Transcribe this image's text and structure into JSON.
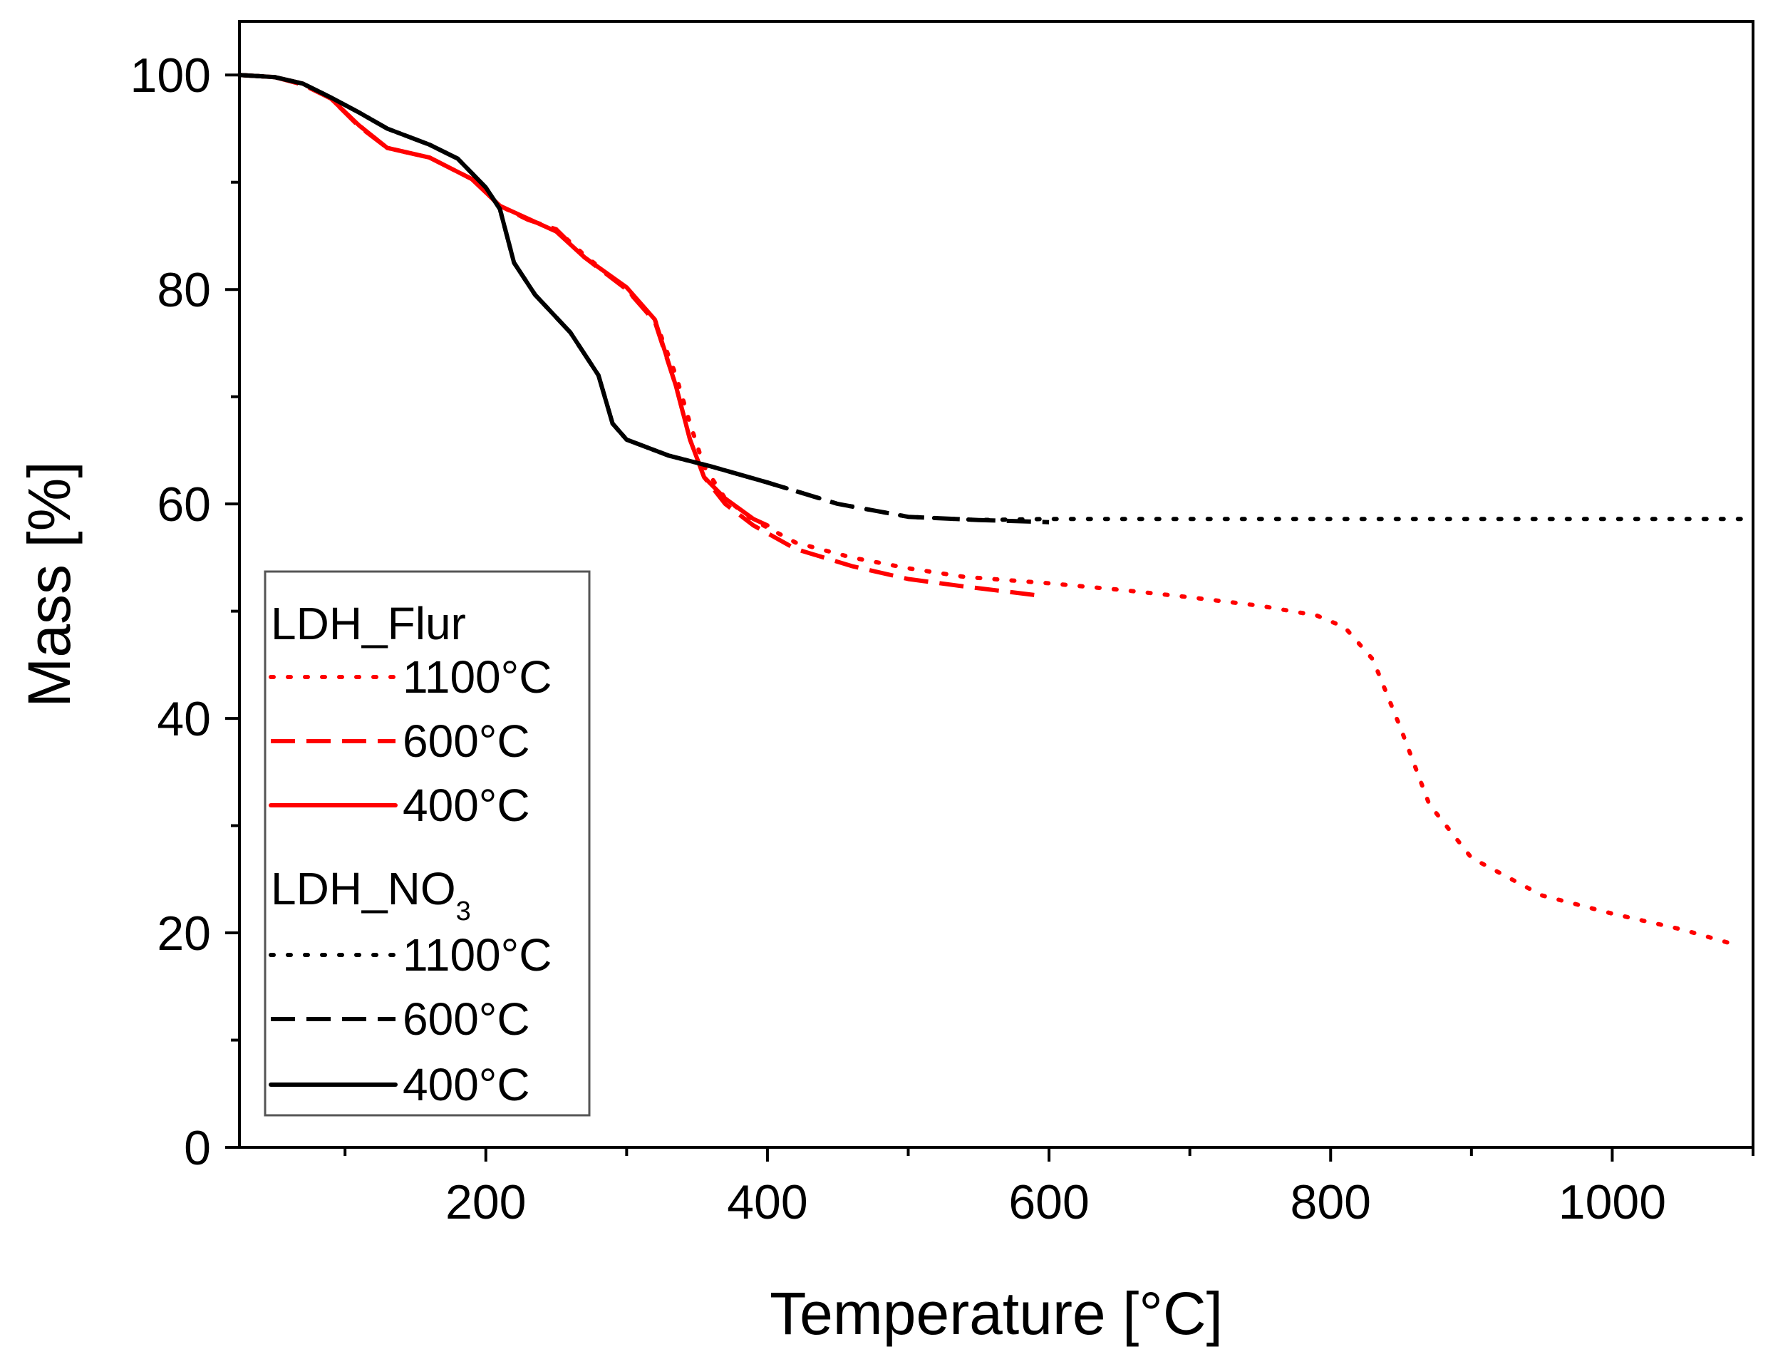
{
  "chart_data": {
    "type": "line",
    "title": "",
    "xlabel": "Temperature [°C]",
    "ylabel": "Mass [%]",
    "xlim": [
      25,
      1100
    ],
    "ylim": [
      0,
      105
    ],
    "x_ticks": [
      200,
      400,
      600,
      800,
      1000
    ],
    "x_minor_ticks": [
      100,
      300,
      500,
      700,
      900,
      1100
    ],
    "y_ticks": [
      0,
      20,
      40,
      60,
      80,
      100
    ],
    "y_minor_ticks": [
      10,
      30,
      50,
      70,
      90
    ],
    "legend_position": "bottom-left",
    "legend_groups": [
      {
        "title_main": "LDH_Flur",
        "title_sub": ""
      },
      {
        "title_main": "LDH_NO",
        "title_sub": "3"
      }
    ],
    "series": [
      {
        "name": "1100°C",
        "group": 0,
        "color": "#ff0000",
        "style": "dotted",
        "points": [
          [
            25,
            100
          ],
          [
            50,
            99.8
          ],
          [
            70,
            99.2
          ],
          [
            90,
            97.8
          ],
          [
            110,
            95.3
          ],
          [
            130,
            93.2
          ],
          [
            160,
            92.3
          ],
          [
            190,
            90.3
          ],
          [
            210,
            87.8
          ],
          [
            230,
            86.5
          ],
          [
            250,
            85.6
          ],
          [
            270,
            83.2
          ],
          [
            300,
            80
          ],
          [
            320,
            77.2
          ],
          [
            335,
            72
          ],
          [
            345,
            67.5
          ],
          [
            355,
            63.5
          ],
          [
            370,
            60.5
          ],
          [
            390,
            58.5
          ],
          [
            420,
            56.4
          ],
          [
            460,
            55
          ],
          [
            500,
            54
          ],
          [
            540,
            53.2
          ],
          [
            600,
            52.6
          ],
          [
            650,
            52
          ],
          [
            700,
            51.3
          ],
          [
            750,
            50.5
          ],
          [
            790,
            49.6
          ],
          [
            810,
            48.5
          ],
          [
            830,
            45.5
          ],
          [
            850,
            39
          ],
          [
            870,
            32
          ],
          [
            900,
            27
          ],
          [
            950,
            23.5
          ],
          [
            1000,
            21.8
          ],
          [
            1050,
            20.3
          ],
          [
            1090,
            18.8
          ]
        ]
      },
      {
        "name": "600°C",
        "group": 0,
        "color": "#ff0000",
        "style": "dashed",
        "points": [
          [
            25,
            100
          ],
          [
            50,
            99.8
          ],
          [
            70,
            99.1
          ],
          [
            90,
            97.8
          ],
          [
            110,
            95.2
          ],
          [
            130,
            93.2
          ],
          [
            160,
            92.3
          ],
          [
            190,
            90.3
          ],
          [
            210,
            87.8
          ],
          [
            230,
            86.5
          ],
          [
            250,
            85.6
          ],
          [
            270,
            83
          ],
          [
            300,
            80
          ],
          [
            320,
            77
          ],
          [
            335,
            71
          ],
          [
            345,
            66
          ],
          [
            355,
            62.5
          ],
          [
            370,
            60
          ],
          [
            390,
            58
          ],
          [
            420,
            55.8
          ],
          [
            460,
            54.2
          ],
          [
            500,
            53
          ],
          [
            540,
            52.3
          ],
          [
            590,
            51.5
          ]
        ]
      },
      {
        "name": "400°C",
        "group": 0,
        "color": "#ff0000",
        "style": "solid",
        "points": [
          [
            25,
            100
          ],
          [
            50,
            99.8
          ],
          [
            70,
            99.2
          ],
          [
            90,
            97.8
          ],
          [
            110,
            95.3
          ],
          [
            130,
            93.2
          ],
          [
            160,
            92.3
          ],
          [
            190,
            90.3
          ],
          [
            210,
            87.8
          ],
          [
            230,
            86.6
          ],
          [
            250,
            85.4
          ],
          [
            270,
            83
          ],
          [
            300,
            80.2
          ],
          [
            320,
            77.2
          ],
          [
            335,
            71
          ],
          [
            345,
            66
          ],
          [
            355,
            62.5
          ],
          [
            370,
            60.5
          ],
          [
            390,
            58.6
          ],
          [
            400,
            58
          ]
        ]
      },
      {
        "name": "1100°C",
        "group": 1,
        "color": "#000000",
        "style": "dotted",
        "points": [
          [
            25,
            100
          ],
          [
            50,
            99.8
          ],
          [
            70,
            99.2
          ],
          [
            90,
            97.9
          ],
          [
            110,
            96.5
          ],
          [
            130,
            95
          ],
          [
            160,
            93.5
          ],
          [
            180,
            92.2
          ],
          [
            200,
            89.5
          ],
          [
            210,
            87.5
          ],
          [
            220,
            82.5
          ],
          [
            235,
            79.5
          ],
          [
            260,
            76
          ],
          [
            280,
            72
          ],
          [
            290,
            67.5
          ],
          [
            300,
            66
          ],
          [
            330,
            64.5
          ],
          [
            360,
            63.5
          ],
          [
            400,
            62
          ],
          [
            450,
            60
          ],
          [
            500,
            58.8
          ],
          [
            550,
            58.5
          ],
          [
            600,
            58.6
          ],
          [
            700,
            58.6
          ],
          [
            800,
            58.6
          ],
          [
            900,
            58.6
          ],
          [
            1000,
            58.6
          ],
          [
            1100,
            58.6
          ]
        ]
      },
      {
        "name": "600°C",
        "group": 1,
        "color": "#000000",
        "style": "dashed",
        "points": [
          [
            25,
            100
          ],
          [
            50,
            99.8
          ],
          [
            70,
            99.2
          ],
          [
            90,
            97.9
          ],
          [
            110,
            96.5
          ],
          [
            130,
            95
          ],
          [
            160,
            93.5
          ],
          [
            180,
            92.2
          ],
          [
            200,
            89.5
          ],
          [
            210,
            87.5
          ],
          [
            220,
            82.5
          ],
          [
            235,
            79.5
          ],
          [
            260,
            76
          ],
          [
            280,
            72
          ],
          [
            290,
            67.5
          ],
          [
            300,
            66
          ],
          [
            330,
            64.5
          ],
          [
            360,
            63.5
          ],
          [
            400,
            62
          ],
          [
            450,
            60
          ],
          [
            500,
            58.8
          ],
          [
            550,
            58.5
          ],
          [
            600,
            58.3
          ]
        ]
      },
      {
        "name": "400°C",
        "group": 1,
        "color": "#000000",
        "style": "solid",
        "points": [
          [
            25,
            100
          ],
          [
            50,
            99.8
          ],
          [
            70,
            99.2
          ],
          [
            90,
            97.9
          ],
          [
            110,
            96.5
          ],
          [
            130,
            95
          ],
          [
            160,
            93.5
          ],
          [
            180,
            92.2
          ],
          [
            200,
            89.5
          ],
          [
            210,
            87.5
          ],
          [
            220,
            82.5
          ],
          [
            235,
            79.5
          ],
          [
            260,
            76
          ],
          [
            280,
            72
          ],
          [
            290,
            67.5
          ],
          [
            300,
            66
          ],
          [
            330,
            64.5
          ],
          [
            360,
            63.5
          ],
          [
            400,
            62
          ],
          [
            405,
            61.8
          ]
        ]
      }
    ]
  }
}
